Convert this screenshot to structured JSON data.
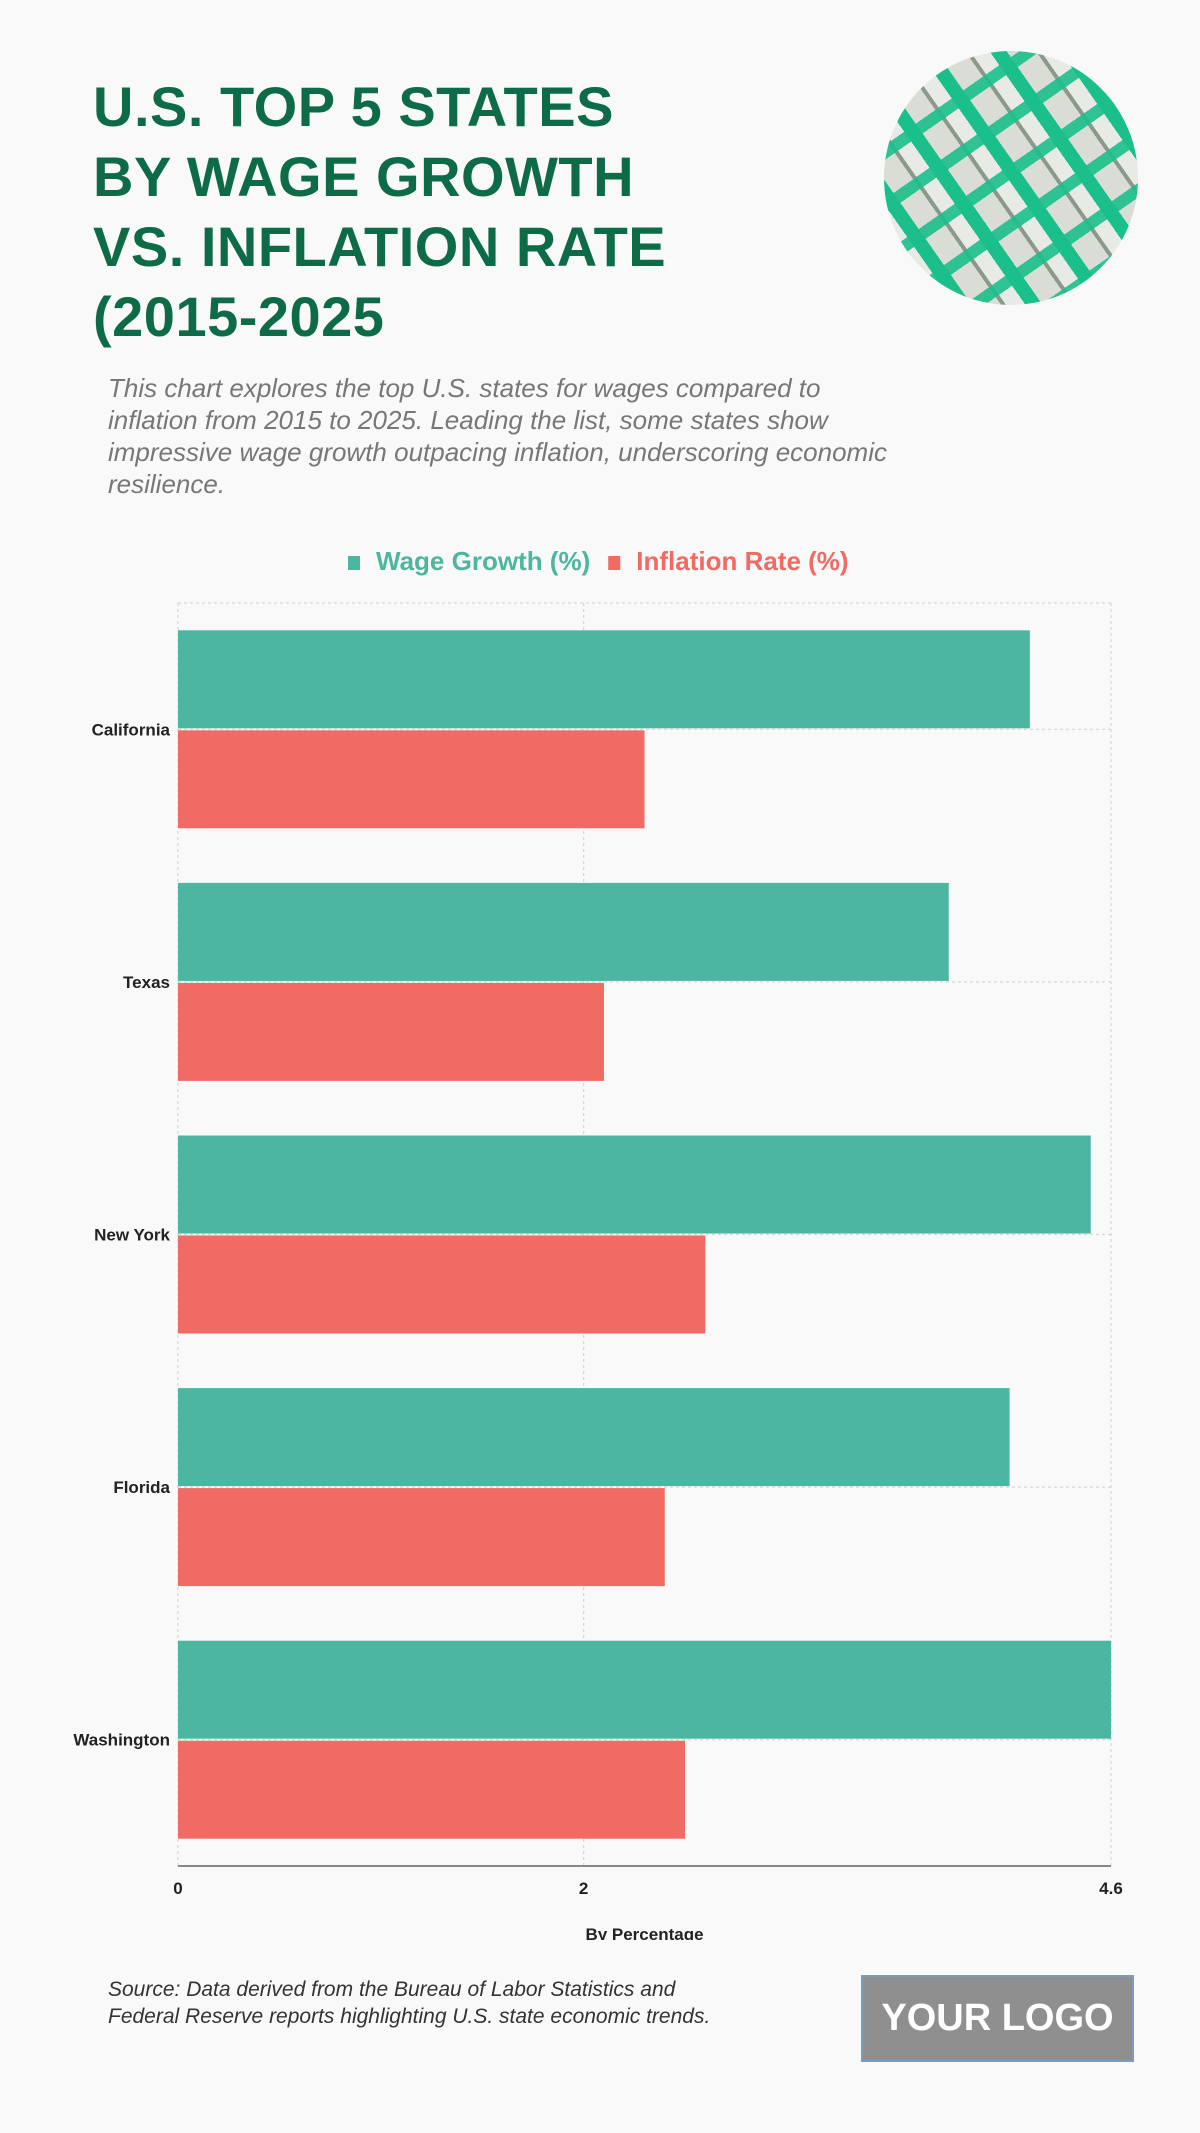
{
  "title_lines": [
    "U.S. TOP 5 STATES",
    "BY WAGE GROWTH",
    "VS. INFLATION RATE",
    "(2015-2025"
  ],
  "description": "This chart explores the top U.S. states for wages compared to inflation from 2015 to 2025. Leading the list, some states show impressive wage growth outpacing inflation, underscoring economic resilience.",
  "hero_image": "money-bills-pattern",
  "source": [
    "Source: Data derived from the Bureau of Labor Statistics and",
    "Federal Reserve reports highlighting U.S. state economic trends."
  ],
  "logo_text": "YOUR LOGO",
  "chart_data": {
    "type": "bar",
    "orientation": "horizontal",
    "categories": [
      "California",
      "Texas",
      "New York",
      "Florida",
      "Washington"
    ],
    "series": [
      {
        "name": "Wage Growth (%)",
        "color": "#4db6a1",
        "values": [
          4.2,
          3.8,
          4.5,
          4.1,
          4.6
        ]
      },
      {
        "name": "Inflation Rate (%)",
        "color": "#ef6b63",
        "values": [
          2.3,
          2.1,
          2.6,
          2.4,
          2.5
        ]
      }
    ],
    "xlabel": "By Percentage",
    "xlim": [
      0,
      4.6
    ],
    "xticks": [
      "0",
      "2",
      "4.6"
    ],
    "tick_values": [
      0,
      2,
      4.6
    ],
    "grid": true,
    "legend": "top-center"
  }
}
